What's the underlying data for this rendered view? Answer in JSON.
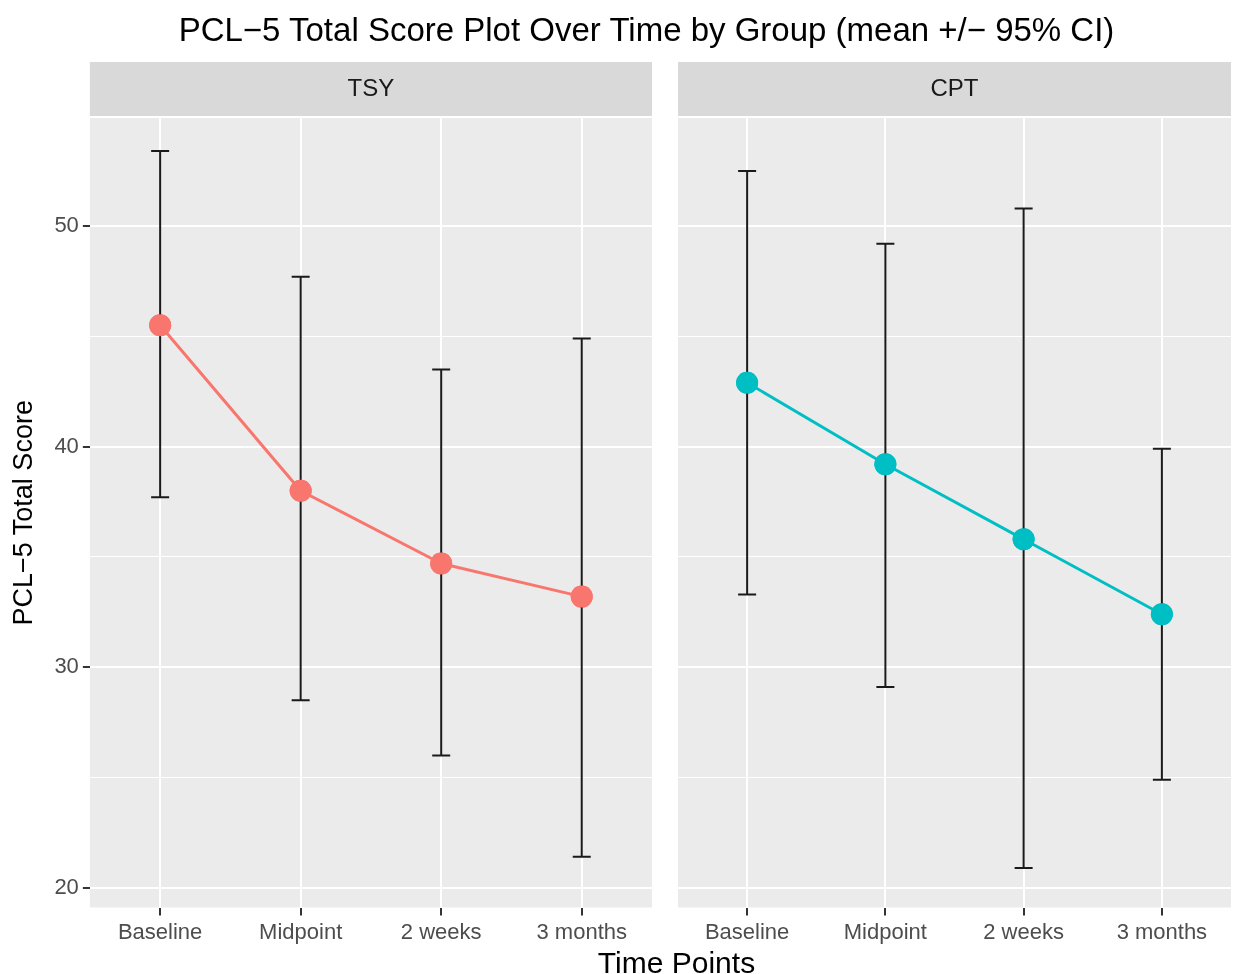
{
  "chart_data": [
    {
      "type": "line",
      "title": "PCL−5 Total Score Plot Over Time by Group (mean +/− 95% CI)",
      "subtitle": "TSY",
      "xlabel": "Time Points",
      "ylabel": "PCL−5 Total Score",
      "categories": [
        "Baseline",
        "Midpoint",
        "2 weeks",
        "3 months"
      ],
      "values": [
        45.5,
        38.0,
        34.7,
        33.2
      ],
      "color": "#f8766d",
      "errors": [
        [
          37.7,
          53.4
        ],
        [
          28.5,
          47.7
        ],
        [
          26.0,
          43.5
        ],
        [
          21.4,
          44.9
        ]
      ],
      "ylim": [
        19.1,
        54.9
      ],
      "yticks": [
        20,
        {
          "value": 25,
          "label": null
        },
        30,
        {
          "value": 35,
          "label": null
        },
        40,
        {
          "value": 45,
          "label": null
        },
        50
      ],
      "grid": true,
      "marker": "circle"
    },
    {
      "type": "line",
      "subtitle": "CPT",
      "categories": [
        "Baseline",
        "Midpoint",
        "2 weeks",
        "3 months"
      ],
      "values": [
        42.9,
        39.2,
        35.8,
        32.4
      ],
      "color": "#00bfc4",
      "errors": [
        [
          33.3,
          52.5
        ],
        [
          29.1,
          49.2
        ],
        [
          20.9,
          50.8
        ],
        [
          24.9,
          39.9
        ]
      ],
      "ylim": [
        19.1,
        54.9
      ],
      "yticks": [
        20,
        {
          "value": 25,
          "label": null
        },
        30,
        {
          "value": 35,
          "label": null
        },
        40,
        {
          "value": 45,
          "label": null
        },
        50
      ],
      "grid": true,
      "marker": "circle",
      "tick_labels": "x"
    }
  ]
}
